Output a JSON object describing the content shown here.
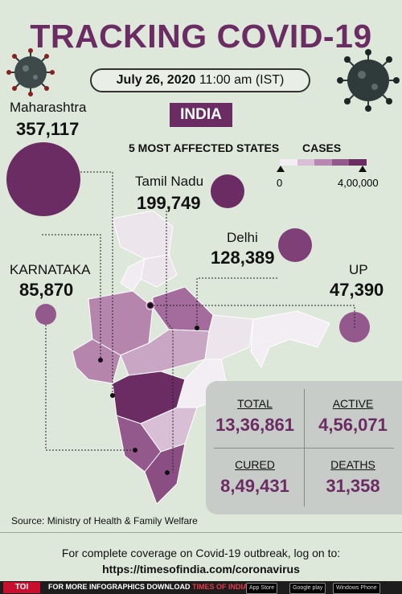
{
  "header": {
    "title": "TRACKING COVID-19",
    "date_bold": "July 26, 2020",
    "date_time": "11:00 am (IST)",
    "country": "INDIA"
  },
  "legend": {
    "states_heading": "5 MOST AFFECTED STATES",
    "cases_heading": "CASES",
    "min_label": "0",
    "max_label": "4,00,000",
    "colors": [
      "#f3eef3",
      "#d9bfd6",
      "#b887b2",
      "#93588c",
      "#6b2c64"
    ]
  },
  "states": [
    {
      "name": "Maharashtra",
      "value": "357,117"
    },
    {
      "name": "Tamil Nadu",
      "value": "199,749"
    },
    {
      "name": "Delhi",
      "value": "128,389"
    },
    {
      "name": "KARNATAKA",
      "value": "85,870"
    },
    {
      "name": "UP",
      "value": "47,390"
    }
  ],
  "stats": {
    "total_label": "TOTAL",
    "total_value": "13,36,861",
    "active_label": "ACTIVE",
    "active_value": "4,56,071",
    "cured_label": "CURED",
    "cured_value": "8,49,431",
    "deaths_label": "DEATHS",
    "deaths_value": "31,358"
  },
  "source": "Source: Ministry of Health & Family Welfare",
  "footer": {
    "line1": "For complete coverage on Covid-19 outbreak, log on to:",
    "line2": "https://timesofindia.com/coronavirus",
    "bar_logo": "TOI",
    "bar_text_prefix": "FOR MORE  INFOGRAPHICS DOWNLOAD ",
    "bar_text_app": "TIMES OF INDIA APP",
    "badges": [
      "App Store",
      "Google play",
      "Windows Phone"
    ]
  },
  "colors": {
    "accent": "#6b2c64",
    "background": "#dde7da"
  }
}
